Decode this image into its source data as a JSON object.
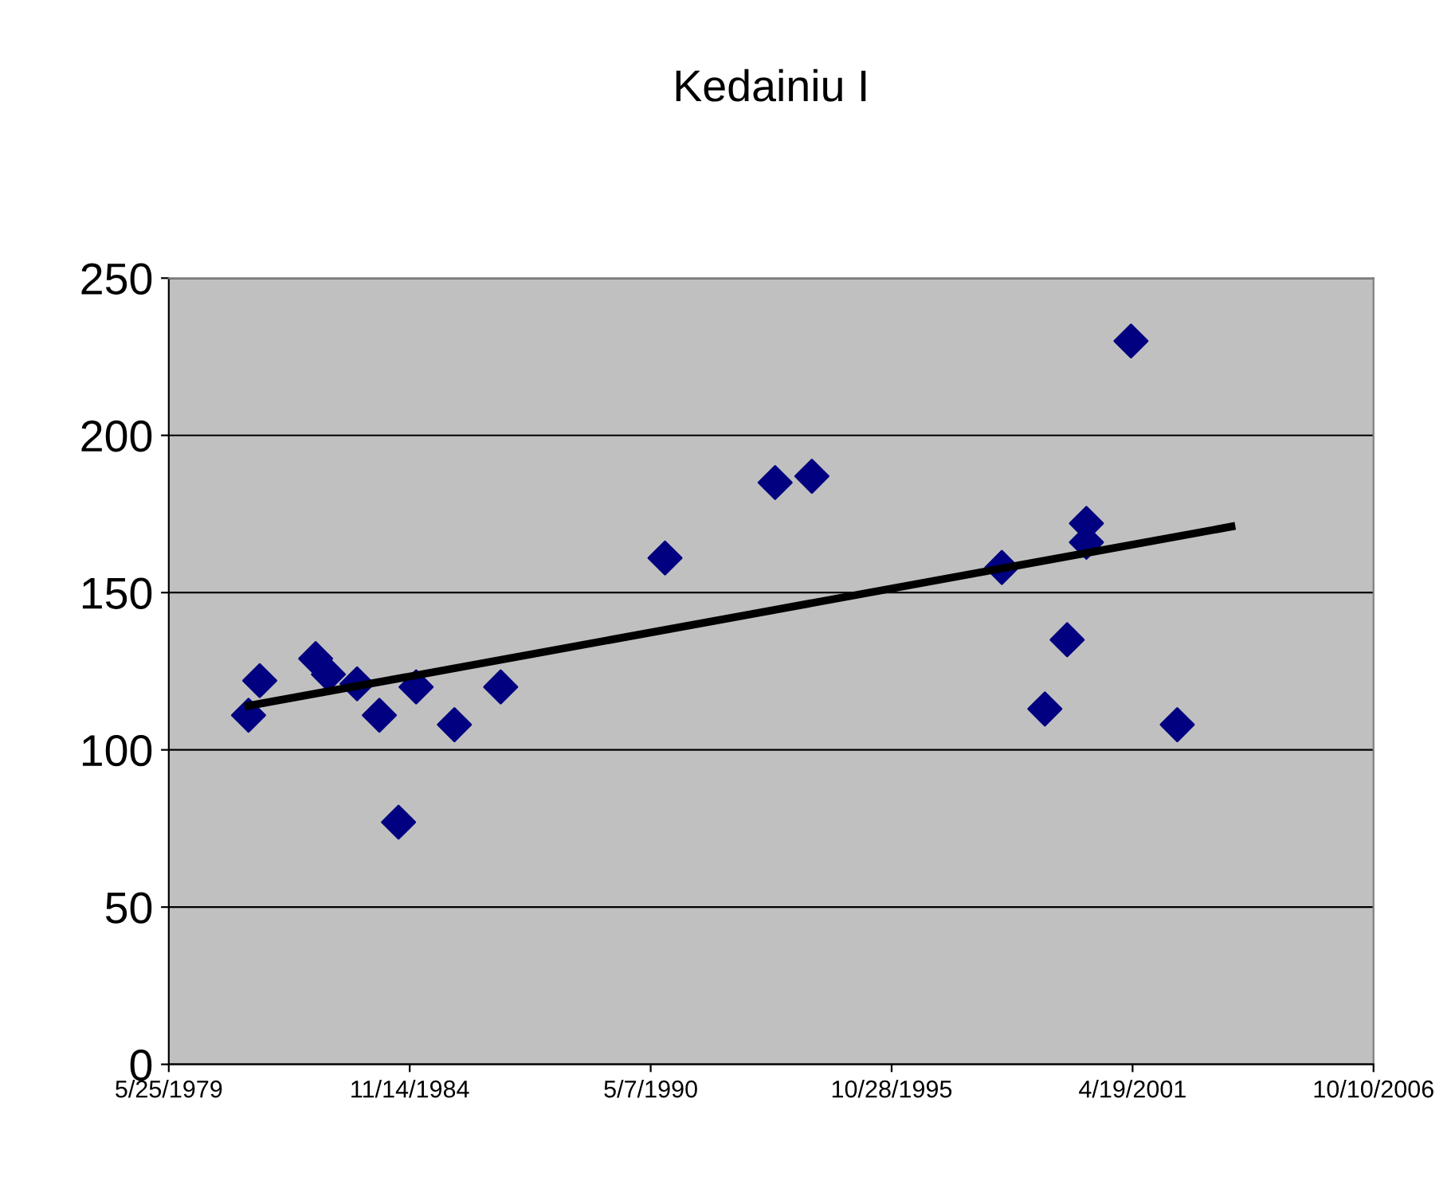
{
  "chart_data": {
    "type": "scatter",
    "title": "Kedainiu I",
    "series": [
      {
        "color": "#000080",
        "marker": "diamond",
        "x": [
          "1981-03-17",
          "1981-06-18",
          "1982-09-25",
          "1983-01-09",
          "1983-09-04",
          "1984-03-07",
          "1984-08-13",
          "1985-01-06",
          "1985-11-20",
          "1986-12-09",
          "1990-09-03",
          "1993-03-05",
          "1994-01-04",
          "1998-04-30",
          "1999-04-22",
          "1999-10-24",
          "2000-04-01",
          "2000-04-01",
          "2001-04-06",
          "2002-04-25"
        ],
        "values": [
          111,
          122,
          129,
          124,
          121,
          111,
          77,
          120,
          108,
          120,
          161,
          185,
          187,
          158,
          113,
          135,
          166,
          172,
          230,
          108
        ]
      },
      {
        "type": "line",
        "color": "#000000",
        "marker": "none",
        "x": [
          "1981-03-17",
          "2003-07-19"
        ],
        "values": [
          114,
          171
        ]
      }
    ],
    "xlim": [
      "1979-05-25",
      "2006-10-10"
    ],
    "xticks": [
      {
        "value": "1979-05-25",
        "label": "5/25/1979"
      },
      {
        "value": "1984-11-14",
        "label": "11/14/1984"
      },
      {
        "value": "1990-05-07",
        "label": "5/7/1990"
      },
      {
        "value": "1995-10-28",
        "label": "10/28/1995"
      },
      {
        "value": "2001-04-19",
        "label": "4/19/2001"
      },
      {
        "value": "2006-10-10",
        "label": "10/10/2006"
      }
    ],
    "ylim": [
      0,
      250
    ],
    "yticks": [
      0,
      50,
      100,
      150,
      200,
      250
    ],
    "grid": "y"
  }
}
